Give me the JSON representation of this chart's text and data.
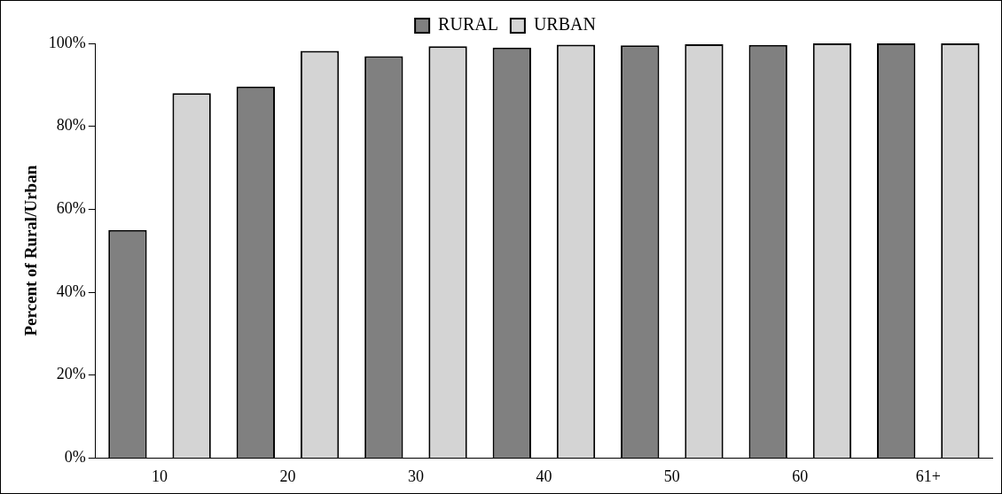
{
  "chart_data": {
    "type": "bar",
    "ylabel": "Percent of Rural/Urban",
    "categories": [
      "10",
      "20",
      "30",
      "40",
      "50",
      "60",
      "61+"
    ],
    "series": [
      {
        "name": "RURAL",
        "color": "#808080",
        "values": [
          55,
          89.6,
          96.9,
          99,
          99.5,
          99.6,
          100
        ]
      },
      {
        "name": "URBAN",
        "color": "#d4d4d4",
        "values": [
          88,
          98.2,
          99.3,
          99.7,
          99.8,
          100,
          100
        ]
      }
    ],
    "ylim": [
      0,
      100
    ],
    "yticks": [
      {
        "value": 0,
        "label": "0%"
      },
      {
        "value": 20,
        "label": "20%"
      },
      {
        "value": 40,
        "label": "40%"
      },
      {
        "value": 60,
        "label": "60%"
      },
      {
        "value": 80,
        "label": "80%"
      },
      {
        "value": 100,
        "label": "100%"
      }
    ],
    "grid": false,
    "legend": "top"
  }
}
